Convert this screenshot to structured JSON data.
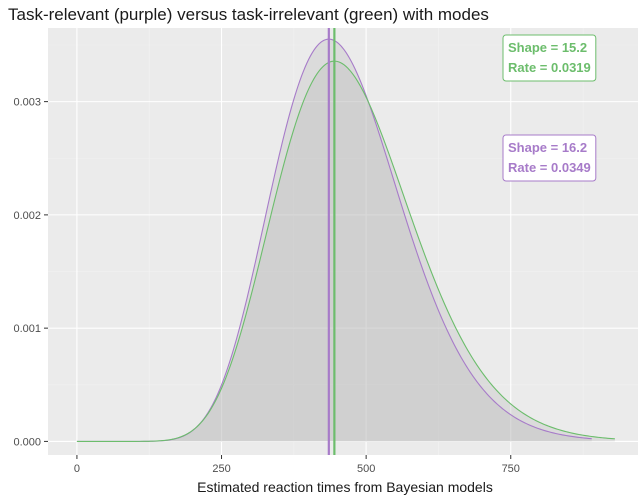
{
  "chart_data": {
    "type": "area",
    "title": "Task-relevant (purple) versus task-irrelevant (green) with modes",
    "xlabel": "Estimated reaction times from Bayesian models",
    "ylabel": "",
    "xlim": [
      -50,
      970
    ],
    "ylim": [
      -0.00012,
      0.00365
    ],
    "x_ticks": [
      0,
      250,
      500,
      750
    ],
    "x_tick_labels": [
      "0",
      "250",
      "500",
      "750"
    ],
    "y_ticks": [
      0.0,
      0.001,
      0.002,
      0.003
    ],
    "y_tick_labels": [
      "0.000",
      "0.001",
      "0.002",
      "0.003"
    ],
    "grid": true,
    "series": [
      {
        "color": "#a77bc9",
        "distribution": "gamma",
        "shape": 16.2,
        "rate": 0.0349,
        "x_range": [
          0,
          890
        ],
        "mode": 435.5
      },
      {
        "color": "#6cbd6c",
        "distribution": "gamma",
        "shape": 15.2,
        "rate": 0.0319,
        "x_range": [
          0,
          930
        ],
        "mode": 445.1
      }
    ],
    "annotations": [
      {
        "lines": [
          "Shape = 15.2",
          "Rate = 0.0319"
        ],
        "color": "#6cbd6c",
        "placement": "top-right"
      },
      {
        "lines": [
          "Shape = 16.2",
          "Rate = 0.0349"
        ],
        "color": "#a77bc9",
        "placement": "upper-right"
      }
    ],
    "colors": {
      "panel": "#ebebeb",
      "fill": "#bdbdbd",
      "grid_major": "#ffffff",
      "grid_minor": "#f2f2f2",
      "vline_purple": "#a77bc9",
      "vline_green": "#6cbd6c"
    }
  }
}
